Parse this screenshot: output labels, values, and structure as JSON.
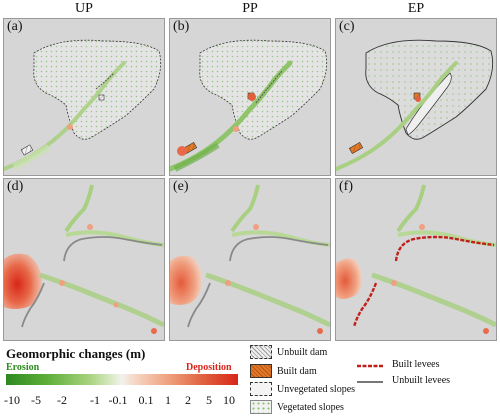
{
  "columns": [
    "UP",
    "PP",
    "EP"
  ],
  "panels": [
    "(a)",
    "(b)",
    "(c)",
    "(d)",
    "(e)",
    "(f)"
  ],
  "legend": {
    "title": "Geomorphic changes (m)",
    "erosion_label": "Erosion",
    "deposition_label": "Deposition",
    "ticks": [
      "-10",
      "-5",
      "-2",
      "-1",
      "-0.1",
      "0.1",
      "1",
      "2",
      "5",
      "10"
    ],
    "items": {
      "unbuilt_dam": "Unbuilt dam",
      "built_dam": "Built dam",
      "unvegetated_slopes": "Unvegetated slopes",
      "vegetated_slopes": "Vegetated slopes",
      "built_levees": "Built levees",
      "unbuilt_levees": "Unbuilt levees"
    }
  },
  "colors": {
    "erosion": "#2d8a1f",
    "deposition": "#d8261a",
    "background": "#d6d6d6",
    "built_dam": "#e07a2a",
    "built_levees": "#c0201a",
    "unbuilt_levees": "#777777"
  }
}
